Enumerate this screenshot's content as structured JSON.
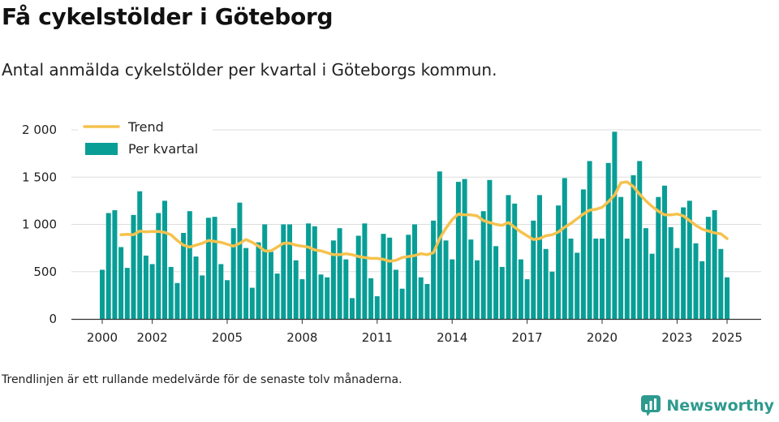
{
  "title": "Få cykelstölder i Göteborg",
  "subtitle": "Antal anmälda cykelstölder per kvartal i Göteborgs kommun.",
  "footnote": "Trendlinjen är ett rullande medelvärde för de senaste tolv månaderna.",
  "brand": {
    "name": "Newsworthy",
    "icon": "newsworthy-logo-icon",
    "color": "#2e9a8e"
  },
  "chart_data": {
    "type": "bar",
    "title": "Få cykelstölder i Göteborg",
    "xlabel": "",
    "ylabel": "",
    "ylim": [
      0,
      2000
    ],
    "xlim": [
      1999,
      2026
    ],
    "grid": true,
    "legend_position": "top-left",
    "y_ticks": [
      {
        "value": 0,
        "label": "0"
      },
      {
        "value": 500,
        "label": "500"
      },
      {
        "value": 1000,
        "label": "1 000"
      },
      {
        "value": 1500,
        "label": "1 500"
      },
      {
        "value": 2000,
        "label": "2 000"
      }
    ],
    "x_ticks": [
      "2000",
      "2002",
      "2005",
      "2008",
      "2011",
      "2014",
      "2017",
      "2020",
      "2023",
      "2025"
    ],
    "series": [
      {
        "name": "Per kvartal",
        "kind": "bar",
        "color": "#089e96",
        "start_year": 2000,
        "quarterly_values": [
          520,
          1120,
          1150,
          760,
          540,
          1100,
          1350,
          670,
          580,
          1120,
          1250,
          550,
          380,
          910,
          1140,
          660,
          460,
          1070,
          1080,
          580,
          410,
          960,
          1230,
          750,
          330,
          810,
          1000,
          710,
          480,
          1000,
          1000,
          620,
          420,
          1010,
          980,
          470,
          440,
          830,
          960,
          630,
          220,
          880,
          1010,
          430,
          240,
          900,
          860,
          520,
          320,
          890,
          1000,
          440,
          370,
          1040,
          1560,
          830,
          630,
          1450,
          1480,
          840,
          620,
          1140,
          1470,
          770,
          550,
          1310,
          1220,
          630,
          420,
          1040,
          1310,
          740,
          500,
          1200,
          1490,
          850,
          700,
          1370,
          1670,
          850,
          850,
          1650,
          1980,
          1290,
          850,
          1520,
          1670,
          960,
          690,
          1290,
          1410,
          970,
          750,
          1180,
          1250,
          800,
          610,
          1080,
          1150,
          740,
          440
        ]
      },
      {
        "name": "Trend",
        "kind": "line",
        "color": "#f5c24e",
        "points": [
          [
            2000.75,
            890
          ],
          [
            2001.0,
            895
          ],
          [
            2001.25,
            890
          ],
          [
            2001.5,
            930
          ],
          [
            2001.75,
            920
          ],
          [
            2002.0,
            925
          ],
          [
            2002.25,
            925
          ],
          [
            2002.5,
            915
          ],
          [
            2002.75,
            890
          ],
          [
            2003.0,
            830
          ],
          [
            2003.25,
            780
          ],
          [
            2003.5,
            760
          ],
          [
            2003.75,
            780
          ],
          [
            2004.0,
            800
          ],
          [
            2004.25,
            830
          ],
          [
            2004.5,
            820
          ],
          [
            2004.75,
            810
          ],
          [
            2005.0,
            790
          ],
          [
            2005.25,
            770
          ],
          [
            2005.5,
            800
          ],
          [
            2005.75,
            840
          ],
          [
            2006.0,
            810
          ],
          [
            2006.25,
            770
          ],
          [
            2006.5,
            720
          ],
          [
            2006.75,
            720
          ],
          [
            2007.0,
            760
          ],
          [
            2007.25,
            800
          ],
          [
            2007.5,
            800
          ],
          [
            2007.75,
            780
          ],
          [
            2008.0,
            770
          ],
          [
            2008.25,
            760
          ],
          [
            2008.5,
            730
          ],
          [
            2008.75,
            720
          ],
          [
            2009.0,
            700
          ],
          [
            2009.25,
            680
          ],
          [
            2009.5,
            680
          ],
          [
            2009.75,
            690
          ],
          [
            2010.0,
            680
          ],
          [
            2010.25,
            660
          ],
          [
            2010.5,
            650
          ],
          [
            2010.75,
            640
          ],
          [
            2011.0,
            640
          ],
          [
            2011.25,
            630
          ],
          [
            2011.5,
            610
          ],
          [
            2011.75,
            620
          ],
          [
            2012.0,
            650
          ],
          [
            2012.25,
            660
          ],
          [
            2012.5,
            670
          ],
          [
            2012.75,
            690
          ],
          [
            2013.0,
            680
          ],
          [
            2013.25,
            700
          ],
          [
            2013.5,
            850
          ],
          [
            2013.75,
            960
          ],
          [
            2014.0,
            1050
          ],
          [
            2014.25,
            1110
          ],
          [
            2014.5,
            1100
          ],
          [
            2014.75,
            1100
          ],
          [
            2015.0,
            1090
          ],
          [
            2015.25,
            1040
          ],
          [
            2015.5,
            1020
          ],
          [
            2015.75,
            1000
          ],
          [
            2016.0,
            990
          ],
          [
            2016.25,
            1020
          ],
          [
            2016.5,
            970
          ],
          [
            2016.75,
            920
          ],
          [
            2017.0,
            880
          ],
          [
            2017.25,
            840
          ],
          [
            2017.5,
            850
          ],
          [
            2017.75,
            880
          ],
          [
            2018.0,
            890
          ],
          [
            2018.25,
            920
          ],
          [
            2018.5,
            970
          ],
          [
            2018.75,
            1010
          ],
          [
            2019.0,
            1060
          ],
          [
            2019.25,
            1110
          ],
          [
            2019.5,
            1150
          ],
          [
            2019.75,
            1160
          ],
          [
            2020.0,
            1180
          ],
          [
            2020.25,
            1240
          ],
          [
            2020.5,
            1310
          ],
          [
            2020.75,
            1440
          ],
          [
            2021.0,
            1450
          ],
          [
            2021.25,
            1400
          ],
          [
            2021.5,
            1320
          ],
          [
            2021.75,
            1250
          ],
          [
            2022.0,
            1190
          ],
          [
            2022.25,
            1140
          ],
          [
            2022.5,
            1100
          ],
          [
            2022.75,
            1100
          ],
          [
            2023.0,
            1110
          ],
          [
            2023.25,
            1090
          ],
          [
            2023.5,
            1040
          ],
          [
            2023.75,
            990
          ],
          [
            2024.0,
            950
          ],
          [
            2024.25,
            930
          ],
          [
            2024.5,
            910
          ],
          [
            2024.75,
            900
          ],
          [
            2025.0,
            850
          ]
        ]
      }
    ]
  }
}
